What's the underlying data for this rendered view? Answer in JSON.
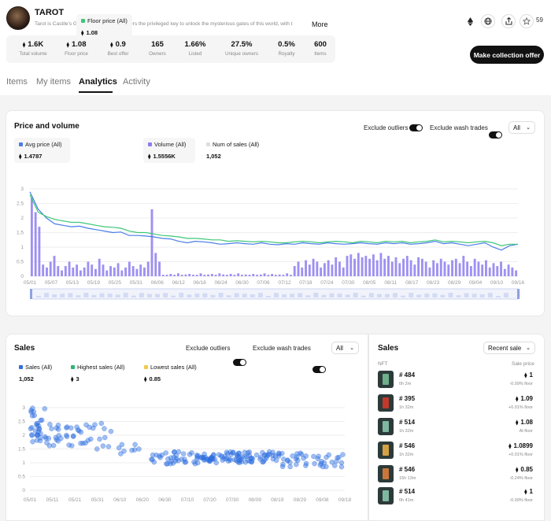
{
  "collection": {
    "name": "TAROT",
    "description": "Tarot is Castile's Genesis NFT, giving holders the privileged key to unlock the mysterious gates of this world, with t",
    "more_label": "More",
    "favorites_count": "59"
  },
  "header_icons": [
    "eth-icon",
    "globe-icon",
    "share-icon",
    "star-icon"
  ],
  "stats": [
    {
      "value": "1.6K",
      "label": "Total volume",
      "eth": true
    },
    {
      "value": "1.08",
      "label": "Floor price",
      "eth": true
    },
    {
      "value": "0.9",
      "label": "Best offer",
      "eth": true
    },
    {
      "value": "165",
      "label": "Owners",
      "eth": false
    },
    {
      "value": "1.66%",
      "label": "Listed",
      "eth": false
    },
    {
      "value": "27.5%",
      "label": "Unique owners",
      "eth": false
    },
    {
      "value": "0.5%",
      "label": "Royalty",
      "eth": false
    },
    {
      "value": "600",
      "label": "Items",
      "eth": false
    }
  ],
  "make_offer_label": "Make collection offer",
  "tabs": [
    "Items",
    "My items",
    "Analytics",
    "Activity"
  ],
  "active_tab": "Analytics",
  "price_volume": {
    "title": "Price and volume",
    "exclude_outliers": "Exclude outliers",
    "exclude_wash": "Exclude wash trades",
    "filter": "All",
    "legend": [
      {
        "label": "Avg price (All)",
        "value": "1.4787",
        "color": "#4a7de8",
        "eth": true
      },
      {
        "label": "Floor price (All)",
        "value": "1.08",
        "color": "#3dc777",
        "eth": true
      },
      {
        "label": "Volume (All)",
        "value": "1.5556K",
        "color": "#8c7cf0",
        "eth": true
      },
      {
        "label": "Num of sales (All)",
        "value": "1,052",
        "color": "#dddddd",
        "eth": false
      }
    ]
  },
  "sales": {
    "title": "Sales",
    "exclude_outliers": "Exclude outliers",
    "exclude_wash": "Exclude wash trades",
    "filter": "All",
    "legend": [
      {
        "label": "Sales (All)",
        "value": "1,052",
        "color": "#2f6fe0",
        "eth": false
      },
      {
        "label": "Highest sales (All)",
        "value": "3",
        "color": "#2ab673",
        "eth": true
      },
      {
        "label": "Lowest sales (All)",
        "value": "0.85",
        "color": "#f2c94c",
        "eth": true
      }
    ]
  },
  "recent_sales": {
    "title": "Sales",
    "sort_label": "Recent sale",
    "col_nft": "NFT",
    "col_price": "Sale price",
    "rows": [
      {
        "name": "# 484",
        "time": "0h 2m",
        "price": "1",
        "floor": "-0.09% floor",
        "card": "#6db08a"
      },
      {
        "name": "# 395",
        "time": "1h 32m",
        "price": "1.09",
        "floor": "+0.01% floor",
        "card": "#c0392b"
      },
      {
        "name": "# 514",
        "time": "1h 32m",
        "price": "1.08",
        "floor": "At floor",
        "card": "#7fb8a0"
      },
      {
        "name": "# 546",
        "time": "1h 32m",
        "price": "1.0899",
        "floor": "+0.01% floor",
        "card": "#d4a244"
      },
      {
        "name": "# 546",
        "time": "15h 13m",
        "price": "0.85",
        "floor": "-0.24% floor",
        "card": "#c9773a"
      },
      {
        "name": "# 514",
        "time": "0h 41m",
        "price": "1",
        "floor": "-0.09% floor",
        "card": "#7fb8a0"
      }
    ]
  },
  "chart_data": [
    {
      "type": "line",
      "title": "Price and volume",
      "x_ticks": [
        "05/01",
        "05/07",
        "05/13",
        "05/19",
        "05/25",
        "05/31",
        "06/06",
        "06/12",
        "06/18",
        "06/24",
        "06/30",
        "07/06",
        "07/12",
        "07/18",
        "07/24",
        "07/30",
        "08/05",
        "08/11",
        "08/17",
        "08/23",
        "08/29",
        "09/04",
        "09/10",
        "09/16"
      ],
      "y_ticks": [
        "0",
        "0.5",
        "1",
        "1.5",
        "2",
        "2.5",
        "3"
      ],
      "ylim": [
        0,
        3
      ],
      "series": [
        {
          "name": "Avg price (All)",
          "color": "#4a7de8",
          "values": [
            2.9,
            2.3,
            2.0,
            1.8,
            1.75,
            1.7,
            1.72,
            1.65,
            1.6,
            1.55,
            1.5,
            1.52,
            1.4,
            1.4,
            1.38,
            1.35,
            1.3,
            1.28,
            1.2,
            1.15,
            1.2,
            1.18,
            1.15,
            1.1,
            1.12,
            1.15,
            1.12,
            1.1,
            1.15,
            1.1,
            1.08,
            1.12,
            1.1,
            1.15,
            1.12,
            1.1,
            1.15,
            1.12,
            1.1,
            1.12,
            1.15,
            1.12,
            1.1,
            1.15,
            1.12,
            1.15,
            1.1,
            1.12,
            1.15,
            1.2,
            1.12,
            1.15,
            1.1,
            1.05,
            1.1,
            1.15,
            1.0,
            0.9,
            1.05,
            1.1
          ]
        },
        {
          "name": "Floor price (All)",
          "color": "#3dc777",
          "values": [
            2.8,
            2.2,
            2.05,
            1.95,
            1.9,
            1.85,
            1.85,
            1.8,
            1.75,
            1.7,
            1.68,
            1.65,
            1.55,
            1.5,
            1.5,
            1.45,
            1.4,
            1.38,
            1.35,
            1.3,
            1.3,
            1.28,
            1.25,
            1.25,
            1.2,
            1.22,
            1.2,
            1.18,
            1.2,
            1.18,
            1.15,
            1.15,
            1.18,
            1.2,
            1.18,
            1.15,
            1.18,
            1.2,
            1.18,
            1.15,
            1.2,
            1.18,
            1.15,
            1.2,
            1.18,
            1.2,
            1.15,
            1.18,
            1.2,
            1.25,
            1.18,
            1.2,
            1.18,
            1.15,
            1.18,
            1.2,
            1.15,
            1.05,
            1.1,
            1.1
          ]
        }
      ],
      "volume_bars": [
        2.7,
        2.2,
        1.7,
        0.4,
        0.3,
        0.5,
        0.7,
        0.35,
        0.2,
        0.35,
        0.5,
        0.3,
        0.4,
        0.2,
        0.3,
        0.5,
        0.4,
        0.25,
        0.6,
        0.4,
        0.2,
        0.35,
        0.3,
        0.45,
        0.2,
        0.3,
        0.5,
        0.35,
        0.25,
        0.4,
        0.3,
        0.5,
        2.3,
        0.8,
        0.5,
        0.05,
        0.05,
        0.08,
        0.05,
        0.1,
        0.05,
        0.06,
        0.08,
        0.05,
        0.05,
        0.1,
        0.05,
        0.06,
        0.08,
        0.05,
        0.1,
        0.06,
        0.05,
        0.08,
        0.05,
        0.1,
        0.05,
        0.06,
        0.05,
        0.08,
        0.05,
        0.06,
        0.1,
        0.05,
        0.08,
        0.05,
        0.06,
        0.05,
        0.1,
        0.05,
        0.35,
        0.5,
        0.3,
        0.55,
        0.4,
        0.6,
        0.5,
        0.3,
        0.45,
        0.55,
        0.4,
        0.65,
        0.5,
        0.3,
        0.7,
        0.75,
        0.6,
        0.8,
        0.65,
        0.7,
        0.6,
        0.75,
        0.55,
        0.8,
        0.6,
        0.7,
        0.5,
        0.65,
        0.45,
        0.6,
        0.7,
        0.55,
        0.4,
        0.65,
        0.6,
        0.5,
        0.3,
        0.55,
        0.45,
        0.6,
        0.5,
        0.4,
        0.55,
        0.6,
        0.45,
        0.7,
        0.5,
        0.35,
        0.6,
        0.5,
        0.4,
        0.55,
        0.3,
        0.45,
        0.35,
        0.5,
        0.25,
        0.4,
        0.3,
        0.2
      ]
    },
    {
      "type": "scatter",
      "title": "Sales",
      "x_ticks": [
        "05/01",
        "05/11",
        "05/21",
        "05/31",
        "06/10",
        "06/20",
        "06/30",
        "07/10",
        "07/20",
        "07/30",
        "08/09",
        "08/19",
        "08/29",
        "09/08",
        "09/18"
      ],
      "y_ticks": [
        "0",
        "0.5",
        "1",
        "1.5",
        "2",
        "2.5",
        "3"
      ],
      "ylim": [
        0,
        3
      ],
      "color": "#2f6fe0",
      "clusters": [
        {
          "x_range": [
            0,
            0.05
          ],
          "y_range": [
            1.7,
            3.0
          ],
          "n": 30
        },
        {
          "x_range": [
            0.05,
            0.2
          ],
          "y_range": [
            1.6,
            2.4
          ],
          "n": 35
        },
        {
          "x_range": [
            0.2,
            0.28
          ],
          "y_range": [
            1.5,
            2.5
          ],
          "n": 10
        },
        {
          "x_range": [
            0.28,
            0.38
          ],
          "y_range": [
            1.3,
            1.7
          ],
          "n": 8
        },
        {
          "x_range": [
            0.38,
            0.55
          ],
          "y_range": [
            0.95,
            1.4
          ],
          "n": 40
        },
        {
          "x_range": [
            0.55,
            0.8
          ],
          "y_range": [
            1.0,
            1.4
          ],
          "n": 90
        },
        {
          "x_range": [
            0.8,
            1.0
          ],
          "y_range": [
            0.85,
            1.35
          ],
          "n": 40
        }
      ]
    }
  ]
}
